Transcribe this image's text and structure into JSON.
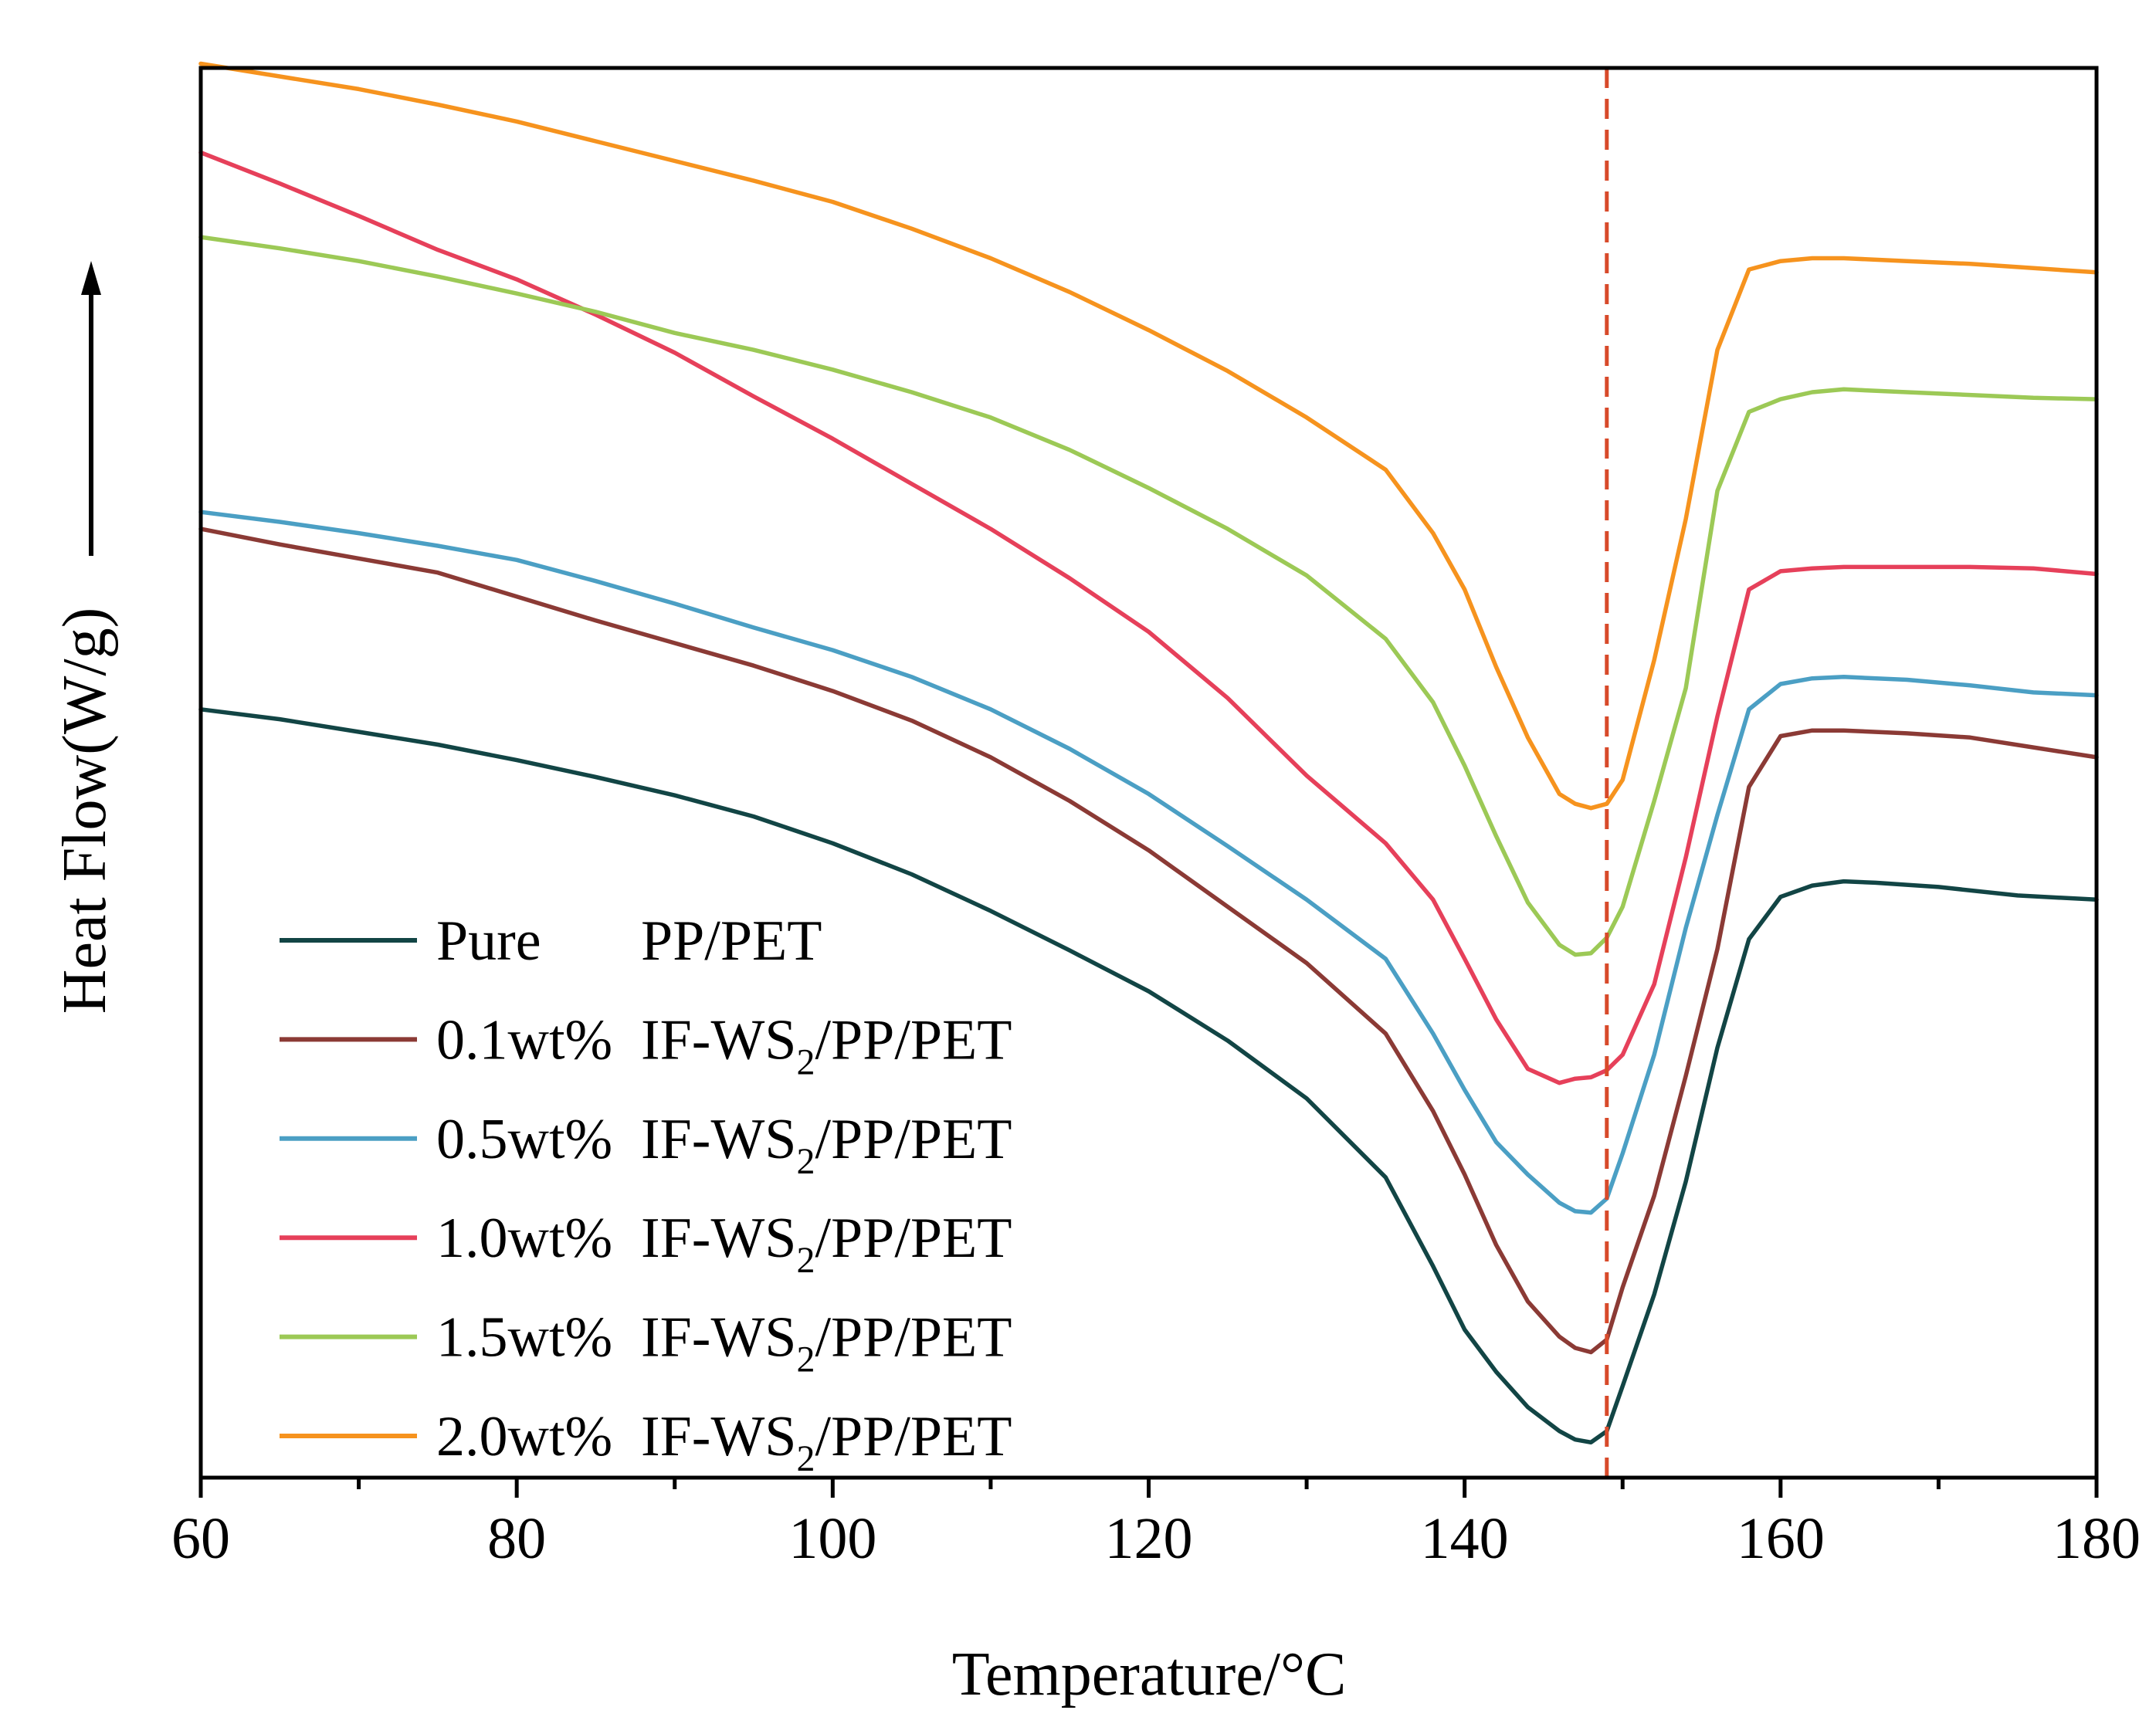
{
  "chart_data": {
    "type": "line",
    "title": "",
    "xlabel": "Temperature/°C",
    "ylabel": "Heat Flow(W/g)",
    "y_direction_arrow": "up",
    "xlim": [
      60,
      180
    ],
    "ylim": [
      0,
      100
    ],
    "x_ticks": [
      "60",
      "80",
      "100",
      "120",
      "140",
      "160",
      "180"
    ],
    "y_ticks_shown": false,
    "grid": false,
    "reference_line": {
      "x": 149,
      "style": "dashed",
      "color": "#d84a2a"
    },
    "legend_position": "bottom-left",
    "series": [
      {
        "name": "Pure PP/PET",
        "legend_prefix": "Pure",
        "legend_sample": "PP/PET",
        "legend_sub": "",
        "legend_suffix": "",
        "color": "#124545",
        "points": [
          [
            60,
            54.5
          ],
          [
            65,
            53.8
          ],
          [
            70,
            52.9
          ],
          [
            75,
            52.0
          ],
          [
            80,
            50.9
          ],
          [
            85,
            49.7
          ],
          [
            90,
            48.4
          ],
          [
            95,
            46.9
          ],
          [
            100,
            45.0
          ],
          [
            105,
            42.8
          ],
          [
            110,
            40.2
          ],
          [
            115,
            37.4
          ],
          [
            120,
            34.5
          ],
          [
            125,
            31.0
          ],
          [
            130,
            26.9
          ],
          [
            135,
            21.3
          ],
          [
            138,
            15.0
          ],
          [
            140,
            10.5
          ],
          [
            142,
            7.5
          ],
          [
            144,
            5.0
          ],
          [
            146,
            3.3
          ],
          [
            147,
            2.7
          ],
          [
            148,
            2.5
          ],
          [
            149,
            3.3
          ],
          [
            150,
            6.5
          ],
          [
            152,
            13.0
          ],
          [
            154,
            21.0
          ],
          [
            156,
            30.5
          ],
          [
            158,
            38.2
          ],
          [
            160,
            41.2
          ],
          [
            162,
            42.0
          ],
          [
            164,
            42.3
          ],
          [
            166,
            42.2
          ],
          [
            170,
            41.9
          ],
          [
            175,
            41.3
          ],
          [
            180,
            41.0
          ]
        ]
      },
      {
        "name": "0.1wt% IF-WS2/PP/PET",
        "legend_prefix": "0.1wt%",
        "legend_sample": "IF-WS",
        "legend_sub": "2",
        "legend_suffix": "/PP/PET",
        "color": "#8b3a35",
        "points": [
          [
            60,
            67.3
          ],
          [
            65,
            66.2
          ],
          [
            70,
            65.2
          ],
          [
            75,
            64.2
          ],
          [
            80,
            62.5
          ],
          [
            85,
            60.8
          ],
          [
            90,
            59.2
          ],
          [
            95,
            57.6
          ],
          [
            100,
            55.8
          ],
          [
            105,
            53.7
          ],
          [
            110,
            51.1
          ],
          [
            115,
            48.0
          ],
          [
            120,
            44.5
          ],
          [
            125,
            40.5
          ],
          [
            130,
            36.5
          ],
          [
            135,
            31.5
          ],
          [
            138,
            26.0
          ],
          [
            140,
            21.5
          ],
          [
            142,
            16.5
          ],
          [
            144,
            12.5
          ],
          [
            146,
            10.0
          ],
          [
            147,
            9.2
          ],
          [
            148,
            8.9
          ],
          [
            149,
            9.8
          ],
          [
            150,
            13.5
          ],
          [
            152,
            20.0
          ],
          [
            154,
            28.5
          ],
          [
            156,
            37.5
          ],
          [
            158,
            49.0
          ],
          [
            160,
            52.6
          ],
          [
            162,
            53.0
          ],
          [
            164,
            53.0
          ],
          [
            168,
            52.8
          ],
          [
            172,
            52.5
          ],
          [
            176,
            51.8
          ],
          [
            180,
            51.1
          ]
        ]
      },
      {
        "name": "0.5wt% IF-WS2/PP/PET",
        "legend_prefix": "0.5wt%",
        "legend_sample": "IF-WS",
        "legend_sub": "2",
        "legend_suffix": "/PP/PET",
        "color": "#4b9fc4",
        "points": [
          [
            60,
            68.5
          ],
          [
            65,
            67.8
          ],
          [
            70,
            67.0
          ],
          [
            75,
            66.1
          ],
          [
            80,
            65.1
          ],
          [
            85,
            63.6
          ],
          [
            90,
            62.0
          ],
          [
            95,
            60.3
          ],
          [
            100,
            58.7
          ],
          [
            105,
            56.8
          ],
          [
            110,
            54.5
          ],
          [
            115,
            51.7
          ],
          [
            120,
            48.5
          ],
          [
            125,
            44.8
          ],
          [
            130,
            41.0
          ],
          [
            135,
            36.8
          ],
          [
            138,
            31.5
          ],
          [
            140,
            27.5
          ],
          [
            142,
            23.8
          ],
          [
            144,
            21.5
          ],
          [
            146,
            19.5
          ],
          [
            147,
            18.9
          ],
          [
            148,
            18.8
          ],
          [
            149,
            19.8
          ],
          [
            150,
            23.0
          ],
          [
            152,
            30.0
          ],
          [
            154,
            39.0
          ],
          [
            156,
            47.0
          ],
          [
            158,
            54.5
          ],
          [
            160,
            56.3
          ],
          [
            162,
            56.7
          ],
          [
            164,
            56.8
          ],
          [
            168,
            56.6
          ],
          [
            172,
            56.2
          ],
          [
            176,
            55.7
          ],
          [
            180,
            55.5
          ]
        ]
      },
      {
        "name": "1.0wt% IF-WS2/PP/PET",
        "legend_prefix": "1.0wt%",
        "legend_sample": "IF-WS",
        "legend_sub": "2",
        "legend_suffix": "/PP/PET",
        "color": "#e6405a",
        "points": [
          [
            60,
            94.0
          ],
          [
            65,
            91.8
          ],
          [
            70,
            89.5
          ],
          [
            75,
            87.1
          ],
          [
            80,
            85.0
          ],
          [
            85,
            82.5
          ],
          [
            90,
            79.8
          ],
          [
            95,
            76.7
          ],
          [
            100,
            73.7
          ],
          [
            105,
            70.5
          ],
          [
            110,
            67.3
          ],
          [
            115,
            63.8
          ],
          [
            120,
            60.0
          ],
          [
            125,
            55.3
          ],
          [
            130,
            49.8
          ],
          [
            135,
            45.0
          ],
          [
            138,
            41.0
          ],
          [
            140,
            36.8
          ],
          [
            142,
            32.5
          ],
          [
            144,
            29.0
          ],
          [
            146,
            28.0
          ],
          [
            147,
            28.3
          ],
          [
            148,
            28.4
          ],
          [
            149,
            28.9
          ],
          [
            150,
            30.0
          ],
          [
            152,
            35.0
          ],
          [
            154,
            44.0
          ],
          [
            156,
            54.0
          ],
          [
            158,
            63.0
          ],
          [
            160,
            64.3
          ],
          [
            162,
            64.5
          ],
          [
            164,
            64.6
          ],
          [
            168,
            64.6
          ],
          [
            172,
            64.6
          ],
          [
            176,
            64.5
          ],
          [
            180,
            64.1
          ]
        ]
      },
      {
        "name": "1.5wt% IF-WS2/PP/PET",
        "legend_prefix": "1.5wt%",
        "legend_sample": "IF-WS",
        "legend_sub": "2",
        "legend_suffix": "/PP/PET",
        "color": "#9cc956",
        "points": [
          [
            60,
            88.0
          ],
          [
            65,
            87.2
          ],
          [
            70,
            86.3
          ],
          [
            75,
            85.2
          ],
          [
            80,
            84.0
          ],
          [
            85,
            82.7
          ],
          [
            90,
            81.2
          ],
          [
            95,
            80.0
          ],
          [
            100,
            78.6
          ],
          [
            105,
            77.0
          ],
          [
            110,
            75.2
          ],
          [
            115,
            72.9
          ],
          [
            120,
            70.2
          ],
          [
            125,
            67.3
          ],
          [
            130,
            64.0
          ],
          [
            135,
            59.5
          ],
          [
            138,
            55.0
          ],
          [
            140,
            50.5
          ],
          [
            142,
            45.5
          ],
          [
            144,
            40.8
          ],
          [
            146,
            37.8
          ],
          [
            147,
            37.1
          ],
          [
            148,
            37.2
          ],
          [
            149,
            38.3
          ],
          [
            150,
            40.5
          ],
          [
            152,
            48.0
          ],
          [
            154,
            56.0
          ],
          [
            156,
            70.0
          ],
          [
            158,
            75.6
          ],
          [
            160,
            76.5
          ],
          [
            162,
            77.0
          ],
          [
            164,
            77.2
          ],
          [
            168,
            77.0
          ],
          [
            172,
            76.8
          ],
          [
            176,
            76.6
          ],
          [
            180,
            76.5
          ]
        ]
      },
      {
        "name": "2.0wt% IF-WS2/PP/PET",
        "legend_prefix": "2.0wt%",
        "legend_sample": "IF-WS",
        "legend_sub": "2",
        "legend_suffix": "/PP/PET",
        "color": "#f6931e",
        "points": [
          [
            60,
            100.3
          ],
          [
            65,
            99.4
          ],
          [
            70,
            98.5
          ],
          [
            75,
            97.4
          ],
          [
            80,
            96.2
          ],
          [
            85,
            94.8
          ],
          [
            90,
            93.4
          ],
          [
            95,
            92.0
          ],
          [
            100,
            90.5
          ],
          [
            105,
            88.6
          ],
          [
            110,
            86.5
          ],
          [
            115,
            84.1
          ],
          [
            120,
            81.4
          ],
          [
            125,
            78.5
          ],
          [
            130,
            75.2
          ],
          [
            135,
            71.5
          ],
          [
            138,
            67.0
          ],
          [
            140,
            63.0
          ],
          [
            142,
            57.5
          ],
          [
            144,
            52.5
          ],
          [
            146,
            48.5
          ],
          [
            147,
            47.8
          ],
          [
            148,
            47.5
          ],
          [
            149,
            47.8
          ],
          [
            150,
            49.5
          ],
          [
            152,
            58.0
          ],
          [
            154,
            68.0
          ],
          [
            156,
            80.0
          ],
          [
            158,
            85.7
          ],
          [
            160,
            86.3
          ],
          [
            162,
            86.5
          ],
          [
            164,
            86.5
          ],
          [
            168,
            86.3
          ],
          [
            172,
            86.1
          ],
          [
            176,
            85.8
          ],
          [
            180,
            85.5
          ]
        ]
      }
    ]
  }
}
